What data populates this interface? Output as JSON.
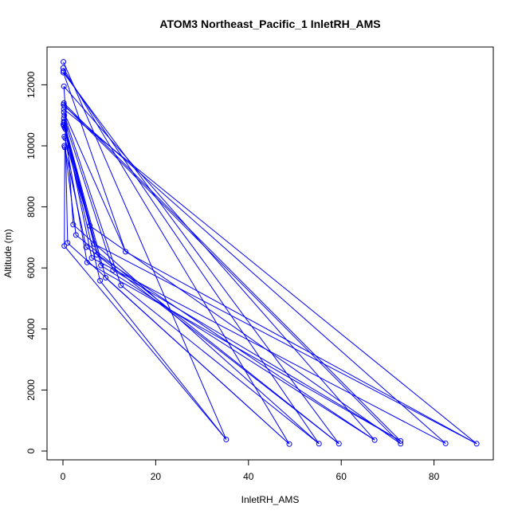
{
  "chart_data": {
    "type": "line",
    "title": "ATOM3 Northeast_Pacific_1 InletRH_AMS",
    "xlabel": "InletRH_AMS",
    "ylabel": "Altitude (m)",
    "xlim": [
      0,
      90
    ],
    "ylim": [
      0,
      12800
    ],
    "x_ticks": [
      0,
      20,
      40,
      60,
      80
    ],
    "y_ticks": [
      0,
      2000,
      4000,
      6000,
      8000,
      10000,
      12000
    ],
    "grid": false,
    "legend": "none",
    "color": "#0000ff",
    "series": [
      {
        "points": [
          [
            0.1,
            12750
          ],
          [
            0.05,
            12550
          ],
          [
            0.1,
            12450
          ],
          [
            0.1,
            12400
          ],
          [
            0.2,
            11950
          ],
          [
            0.2,
            11400
          ],
          [
            0.15,
            11350
          ],
          [
            0.3,
            11300
          ],
          [
            0.2,
            11200
          ],
          [
            0.2,
            11100
          ],
          [
            0.3,
            11000
          ],
          [
            0.2,
            10900
          ],
          [
            0.2,
            10800
          ],
          [
            0.2,
            10750
          ],
          [
            0.1,
            10700
          ],
          [
            0.2,
            10650
          ],
          [
            0.4,
            10600
          ],
          [
            0.5,
            10550
          ],
          [
            0.3,
            10300
          ],
          [
            0.5,
            10250
          ],
          [
            0.3,
            10000
          ],
          [
            0.4,
            9950
          ],
          [
            0.3,
            6720
          ],
          [
            1.0,
            6820
          ],
          [
            2.2,
            7420
          ],
          [
            2.8,
            7080
          ],
          [
            5.0,
            6680
          ],
          [
            5.2,
            6180
          ],
          [
            5.8,
            7380
          ],
          [
            6.2,
            6330
          ],
          [
            6.8,
            6780
          ],
          [
            7.3,
            6430
          ],
          [
            8.0,
            5580
          ],
          [
            8.2,
            6080
          ],
          [
            9.2,
            5680
          ],
          [
            10.8,
            5930
          ],
          [
            12.5,
            5430
          ],
          [
            13.5,
            6530
          ],
          [
            35.2,
            380
          ],
          [
            48.8,
            230
          ],
          [
            55.2,
            240
          ],
          [
            59.5,
            240
          ],
          [
            67.2,
            360
          ],
          [
            72.8,
            330
          ],
          [
            72.8,
            240
          ],
          [
            82.5,
            250
          ],
          [
            89.2,
            240
          ]
        ],
        "segments": [
          [
            0,
            38
          ],
          [
            1,
            39
          ],
          [
            2,
            40
          ],
          [
            3,
            41
          ],
          [
            4,
            42
          ],
          [
            5,
            43
          ],
          [
            6,
            44
          ],
          [
            7,
            45
          ],
          [
            8,
            46
          ],
          [
            9,
            37
          ],
          [
            10,
            36
          ],
          [
            11,
            35
          ],
          [
            12,
            34
          ],
          [
            13,
            33
          ],
          [
            14,
            32
          ],
          [
            15,
            31
          ],
          [
            16,
            30
          ],
          [
            17,
            29
          ],
          [
            18,
            28
          ],
          [
            19,
            27
          ],
          [
            20,
            26
          ],
          [
            21,
            25
          ],
          [
            4,
            24
          ],
          [
            17,
            23
          ],
          [
            21,
            22
          ],
          [
            22,
            38
          ],
          [
            23,
            39
          ],
          [
            24,
            40
          ],
          [
            25,
            41
          ],
          [
            26,
            42
          ],
          [
            27,
            43
          ],
          [
            28,
            44
          ],
          [
            29,
            45
          ],
          [
            30,
            46
          ],
          [
            32,
            38
          ],
          [
            34,
            39
          ],
          [
            36,
            40
          ],
          [
            37,
            46
          ],
          [
            31,
            41
          ],
          [
            33,
            42
          ],
          [
            35,
            43
          ],
          [
            3,
            37
          ]
        ]
      }
    ]
  }
}
